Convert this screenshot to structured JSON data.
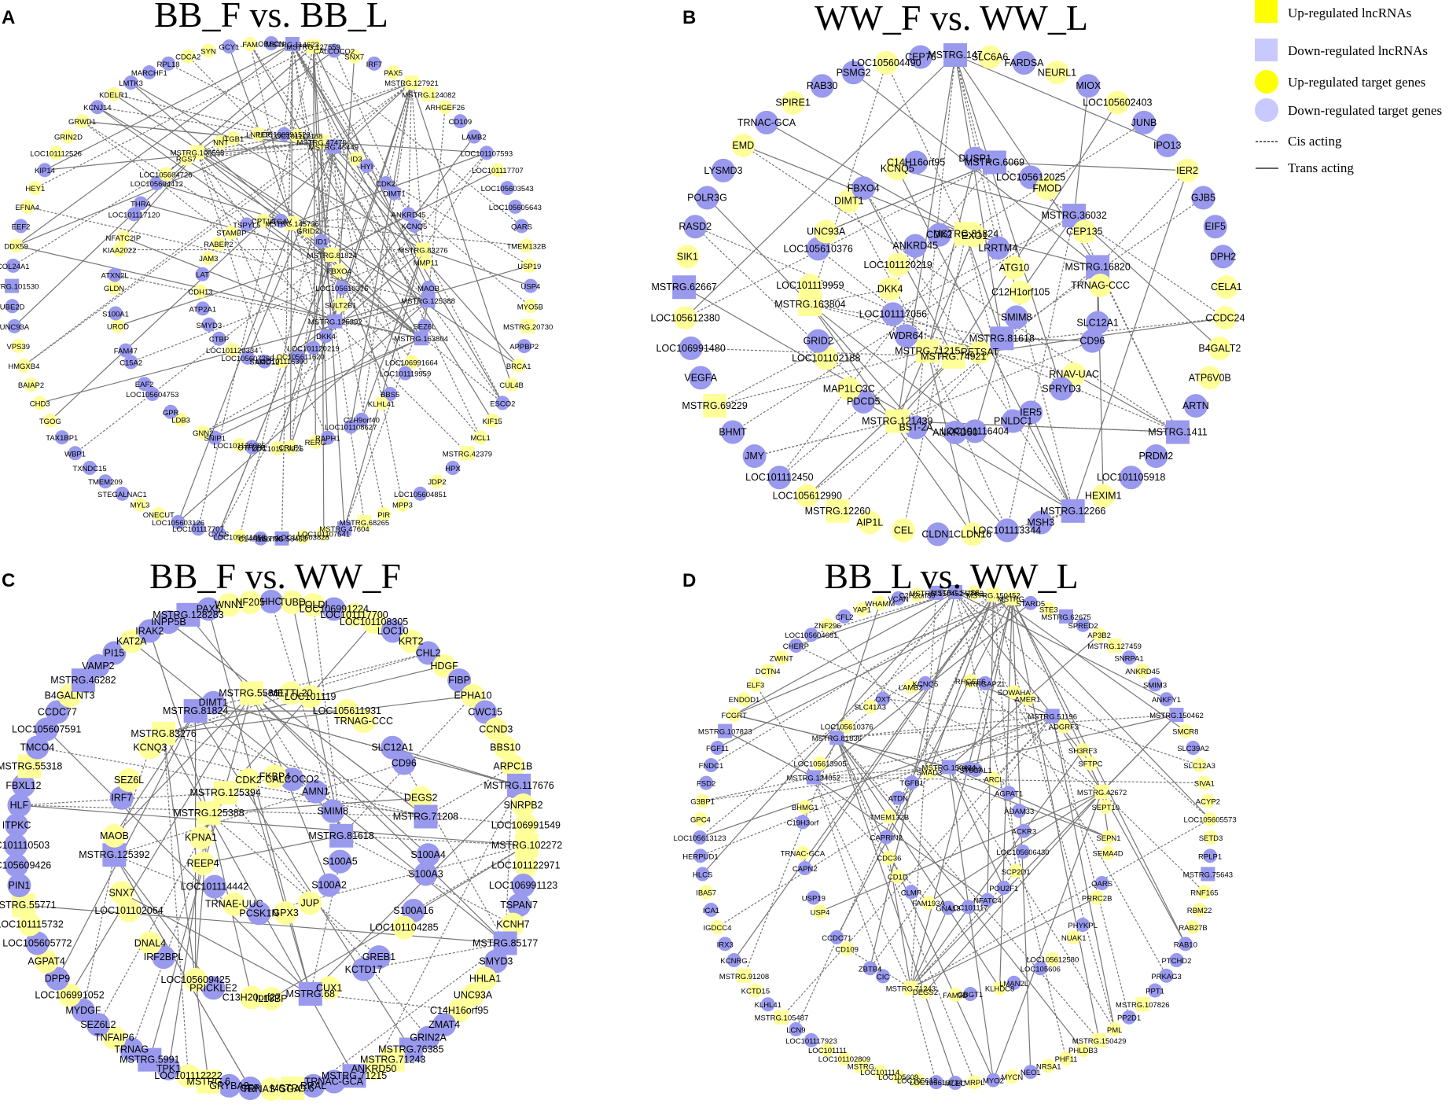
{
  "colors": {
    "up": "#ffff99",
    "up_legend": "#ffff00",
    "down": "#9999ee",
    "down_legend": "#c9c9ff",
    "edge": "#777777"
  },
  "legend": {
    "up_lnc": "Up-regulated lncRNAs",
    "down_lnc": "Down-regulated lncRNAs",
    "up_gene": "Up-regulated target genes",
    "down_gene": "Down-regulated target genes",
    "cis": "Cis acting",
    "trans": "Trans acting"
  },
  "panels": [
    {
      "letter": "A",
      "title": "BB_F vs. BB_L",
      "small": true,
      "nodes": [
        "OBSCN",
        "MSTRG.114623",
        "MSTRG.127559",
        "CALCOCO2",
        "SNX7",
        "IRF7",
        "PAX5",
        "MSTRG.127921",
        "MSTRG.124082",
        "ARHGEF26",
        "CD109",
        "LAMB2",
        "LOC101107593",
        "LOC101117707",
        "LOC105603543",
        "LOC105605643",
        "QARS",
        "TMEM132B",
        "USP19",
        "USP4",
        "MYO5B",
        "MSTRG.20730",
        "APPBP2",
        "BRCA1",
        "CUL4B",
        "ESCO2",
        "KIF15",
        "MCL1",
        "MSTRG.42379",
        "HPX",
        "JDP2",
        "LOC105604851",
        "MPP3",
        "PIR",
        "MSTRG.68265",
        "MSTRG.47604",
        "LOC101107541",
        "LOC105603828",
        "MSTRG.58463",
        "C14H16orf95",
        "LOC105611853",
        "CYCS",
        "LOC101117707",
        "LOC105603126",
        "ONECUT",
        "MYL3",
        "STEGALNAC1",
        "TMEM209",
        "TXNDC15",
        "WBP1",
        "TAX1BP1",
        "TGOG",
        "CHD3",
        "BAIAP2",
        "HMGXB4",
        "VPS39",
        "UNC93A",
        "UBE2D",
        "MSTRG.101530",
        "COL24A1",
        "DDX59",
        "EEF2",
        "EFNA4",
        "HEY1",
        "KIP14",
        "LOC101112526",
        "GRIN2D",
        "GRWD1",
        "KCNJ14",
        "KDELR1",
        "LMTK3",
        "MARCHF1",
        "RPL18",
        "CDCA2",
        "SYN",
        "GCY1",
        "FAM"
      ],
      "inner": [
        "MSTRG.145736",
        "LOC106991522",
        "LOC101112188",
        "GRID2",
        "MSTRG.47470",
        "MSTRG.45449",
        "ID1",
        "ID3",
        "HYI",
        "MSTRG.81824",
        "CDK2",
        "DIMT1",
        "FBXO4",
        "ANKRD45",
        "KCNQ5",
        "LOC105610376",
        "MSTRG.83276",
        "MMP11",
        "SULT2B1",
        "MAOB",
        "MSTRG.125388",
        "MSTRG.125392",
        "SEZ6L",
        "MSTRG.163804",
        "DKK4",
        "LOC106991664",
        "LOC101119959",
        "LOC101120219",
        "BBS5",
        "KLHL41",
        "LOC105611620",
        "C2H9orf40",
        "LOC101108627",
        "LOC101116390",
        "RAPH1",
        "RERG",
        "SAMD12",
        "CRLF1",
        "LOC101119925",
        "LOC105607266",
        "OTF2H1",
        "LOC101120085",
        "LOC101120334",
        "SNIP1",
        "GNN2",
        "CTBP",
        "LDB3",
        "GPR",
        "SMYD3",
        "LOC105604753",
        "EAF2",
        "ATP2A1",
        "C15A2",
        "FAM47",
        "CDH13",
        "UROD",
        "S100A1",
        "LAT",
        "GLDN",
        "ATXN2L",
        "JAM3",
        "KIAA2022",
        "NFATC2IP",
        "RABEP2",
        "LOC101117120",
        "THRA",
        "STAMBP",
        "LOC105604412",
        "LOC105604726",
        "TSPYL5",
        "RGS7",
        "MSTRG.100598",
        "CPT1A",
        "NNT",
        "ITGB1",
        "ITGAV",
        "LNPEP"
      ]
    },
    {
      "letter": "B",
      "title": "WW_F vs. WW_L",
      "small": false,
      "nodes": [
        "MSTRG.147",
        "SLC6A6",
        "FARDSA",
        "NEURL1",
        "MIOX",
        "LOC105602403",
        "JUNB",
        "IPO13",
        "IER2",
        "GJB5",
        "EIF5",
        "DPH2",
        "CELA1",
        "CCDC24",
        "B4GALT2",
        "ATP6V0B",
        "ARTN",
        "MSTRG.1411",
        "PRDM2",
        "LOC101105918",
        "HEXIM1",
        "MSTRG.12266",
        "MSH3",
        "LOC101113344",
        "CLDN16",
        "CLDN1",
        "CEL",
        "AIP1L",
        "MSTRG.12260",
        "LOC105612990",
        "LOC101112450",
        "JMY",
        "BHMT",
        "MSTRG.69229",
        "VEGFA",
        "LOC106991480",
        "LOC105612380",
        "MSTRG.62667",
        "SIK1",
        "RASD2",
        "POLR3G",
        "LYSMD3",
        "EMD",
        "TRNAC-GCA",
        "SPIRE1",
        "RAB30",
        "PSMG2",
        "LOC105604490",
        "CEP76"
      ],
      "inner": [
        "EXO1",
        "DUSP1",
        "MSTRG.6069",
        "LRRTM4",
        "LOC105612025",
        "FMOD",
        "ATG10",
        "MSTRG.36032",
        "CEP135",
        "C12H1orf105",
        "MSTRG.16820",
        "TRNAG-CCC",
        "SMIM8",
        "SLC12A1",
        "CD96",
        "MSTRG.81618",
        "RNAV-UAC",
        "SPRYD3",
        "RETSAT",
        "IER5",
        "PNLDC1",
        "MSTRG.74921",
        "LOC101116404",
        "ANKRD50",
        "MSTRG.71215",
        "BST-2A",
        "MSTRG.121439",
        "WDR64",
        "PDCD5",
        "MAP1LC3C",
        "LOC101117056",
        "LOC101102188",
        "GRID2",
        "DKK4",
        "MSTRG.163804",
        "LOC101119959",
        "LOC101120219",
        "LOC105610376",
        "UNC93A",
        "ANKRD45",
        "DIMT1",
        "FBXO4",
        "CDK2",
        "KCNQ5",
        "C14H16orf95",
        "MSTRG.81824"
      ]
    },
    {
      "letter": "C",
      "title": "BB_F vs. WW_F",
      "small": false,
      "nodes": [
        "HHC",
        "TUBD",
        "FOLDI",
        "LOC106991224",
        "LOC101117700",
        "LOC101108305",
        "LOC10",
        "KRT2",
        "CHL2",
        "HDGF",
        "FIBP",
        "EPHA10",
        "CWC15",
        "CCND3",
        "BBS10",
        "ARPC1B",
        "MSTRG.117676",
        "SNRPB2",
        "LOC106991549",
        "MSTRG.102272",
        "LOC101122971",
        "LOC106991123",
        "TSPAN7",
        "KCNH7",
        "MSTRG.85177",
        "SMYD3",
        "HHLA1",
        "UNC93A",
        "C14H16orf95",
        "ZMAT4",
        "GRIN2A",
        "MSTRG.76385",
        "MSTRG.71243",
        "ANKRD50",
        "MSTRG.71215",
        "TRNAC-GCA",
        "RRAL",
        "MSTRG.6",
        "TRNAS-GGA",
        "CEP",
        "GRYBA2",
        "MSTRG.6",
        "LOC101112222",
        "TPK1",
        "MSTRG.5991",
        "TRNAG",
        "TNFAIP6",
        "SEZ6L2",
        "MYDGF",
        "LOC106991052",
        "DPP9",
        "AGPAT4",
        "LOC105605772",
        "LOC101115732",
        "MSTRG.55771",
        "PIN1",
        "LOC105609426",
        "LOC101110503",
        "ITPKC",
        "HLF",
        "FBXL12",
        "MSTRG.55318",
        "TMCO4",
        "LOC105607591",
        "CCDC77",
        "B4GALNT3",
        "MSTRG.46282",
        "VAMP2",
        "PI15",
        "KAT2A",
        "IRAK2",
        "INPP5B",
        "MSTRG.128283",
        "PAX5",
        "WNN1",
        "NF205"
      ],
      "inner": [
        "CALCOCO2",
        "METTL20",
        "LOC101119",
        "AMN1",
        "LOC105611931",
        "TRNAG-CCC",
        "SMIM8",
        "SLC12A1",
        "CD96",
        "MSTRG.81618",
        "DEGS2",
        "MSTRG.71208",
        "S100A5",
        "S100A4",
        "S100A3",
        "S100A2",
        "S100A16",
        "LOC101104285",
        "JUP",
        "GREB1",
        "KCTD17",
        "GPX3",
        "CUX1",
        "MSTRG.68",
        "PCSK1N",
        "IL18BP",
        "C13H20orf27",
        "TRNAE-UUC",
        "PRICKLE2",
        "LOC105609425",
        "LOC101114442",
        "IRF2BPL",
        "DNAL4",
        "REEP4",
        "LOC101102064",
        "SNX7",
        "KPNA1",
        "MSTRG.125392",
        "MAOB",
        "MSTRG.125388",
        "IRF7",
        "SEZ6L",
        "MSTRG.125394",
        "KCNQ3",
        "MSTRG.83276",
        "CDK2",
        "MSTRG.81824",
        "DIMT1",
        "FKBP4",
        "MSTRG.55861"
      ]
    },
    {
      "letter": "D",
      "title": "BB_L vs. WW_L",
      "small": true,
      "nodes": [
        "MSTRG.SUS5",
        "STK3",
        "MSTRG.150452",
        "MSTRG.",
        "STARD5",
        "STE3",
        "MSTRG.62675",
        "SPRED2",
        "AP3B2",
        "MSTRG.127459",
        "SNRPA1",
        "ANKRD45",
        "SMIM3",
        "ANKFY1",
        "MSTRG.150462",
        "SMCR8",
        "SLC39A2",
        "SLC12A3",
        "SIVA1",
        "ACYP2",
        "LOC105605573",
        "SETD3",
        "RPLP1",
        "MSTRG.75643",
        "RNF165",
        "RBM22",
        "RAB27B",
        "RAB10",
        "PTCHD2",
        "PRKAG3",
        "PPT1",
        "MSTRG.107826",
        "PP2D1",
        "PML",
        "MSTRG.150429",
        "PHLDB3",
        "PHF11",
        "NRSA1",
        "NEO1",
        "MYCN",
        "MYO2",
        "MRPL",
        "MLEC",
        "LOC105613734",
        "LOC105613",
        "LOC105609",
        "LOC101114",
        "MSTRG.",
        "LOC101102809",
        "LOC101111",
        "LOC101117923",
        "LCN9",
        "MSTRG.105487",
        "KLHL41",
        "KCTD15",
        "MSTRG.91208",
        "KCNRG",
        "IRX3",
        "IGDCC4",
        "ICA1",
        "IBA57",
        "HLCS",
        "HERPUD1",
        "LOC105613123",
        "GPC4",
        "G3BP1",
        "FSD2",
        "FNDC1",
        "FGF11",
        "MSTRG.107823",
        "FCGRT",
        "ENDOD1",
        "ELF3",
        "DCTN4",
        "ZWINT",
        "CHERP",
        "LOC105604681",
        "ZNF296",
        "CFL2",
        "YAP1",
        "WHAMM",
        "VCAN",
        "C2H2orf80",
        "MSTRG.150452"
      ],
      "inner": [
        "ST6GAL1",
        "RHGEF6",
        "ARHGAP21",
        "ARCL",
        "SOWAHA",
        "AMER1",
        "AGPAT1",
        "MSTRG.51196",
        "ADGRF3",
        "ADAM33",
        "SH3RF3",
        "SFTPC",
        "ACKR3",
        "MSTRG.42672",
        "SEPT10",
        "LOC105606430",
        "SEPN1",
        "SEMA4D",
        "SCP2D1",
        "QARS",
        "PRRC2B",
        "POU2F1",
        "PHYKPL",
        "NUAK1",
        "NFATC4",
        "LOC105612580",
        "LOC105606",
        "LOC101117",
        "LMAN2L",
        "KLHDC8",
        "GNA13",
        "GBGT1",
        "FAM3D",
        "FAM193A",
        "DEGS2",
        "MSTRG.71243",
        "CLMP",
        "CIC",
        "ZBTB4",
        "CD1D",
        "CD109",
        "CCDC71",
        "CDC36",
        "USP4",
        "USP19",
        "CAPRIN2",
        "CAPN2",
        "TRNAC-GCA",
        "TMEM132B",
        "C19H3orf",
        "BHMG1",
        "ATDN",
        "MSTRG.134052",
        "LOC105613905",
        "TGFB1",
        "MSTRG.81836",
        "LOC105610376",
        "SMAD3",
        "SLC41A3",
        "OXT",
        "MSTRG.150434",
        "LAMB2",
        "KCNQ5",
        "FBXO4"
      ]
    }
  ]
}
